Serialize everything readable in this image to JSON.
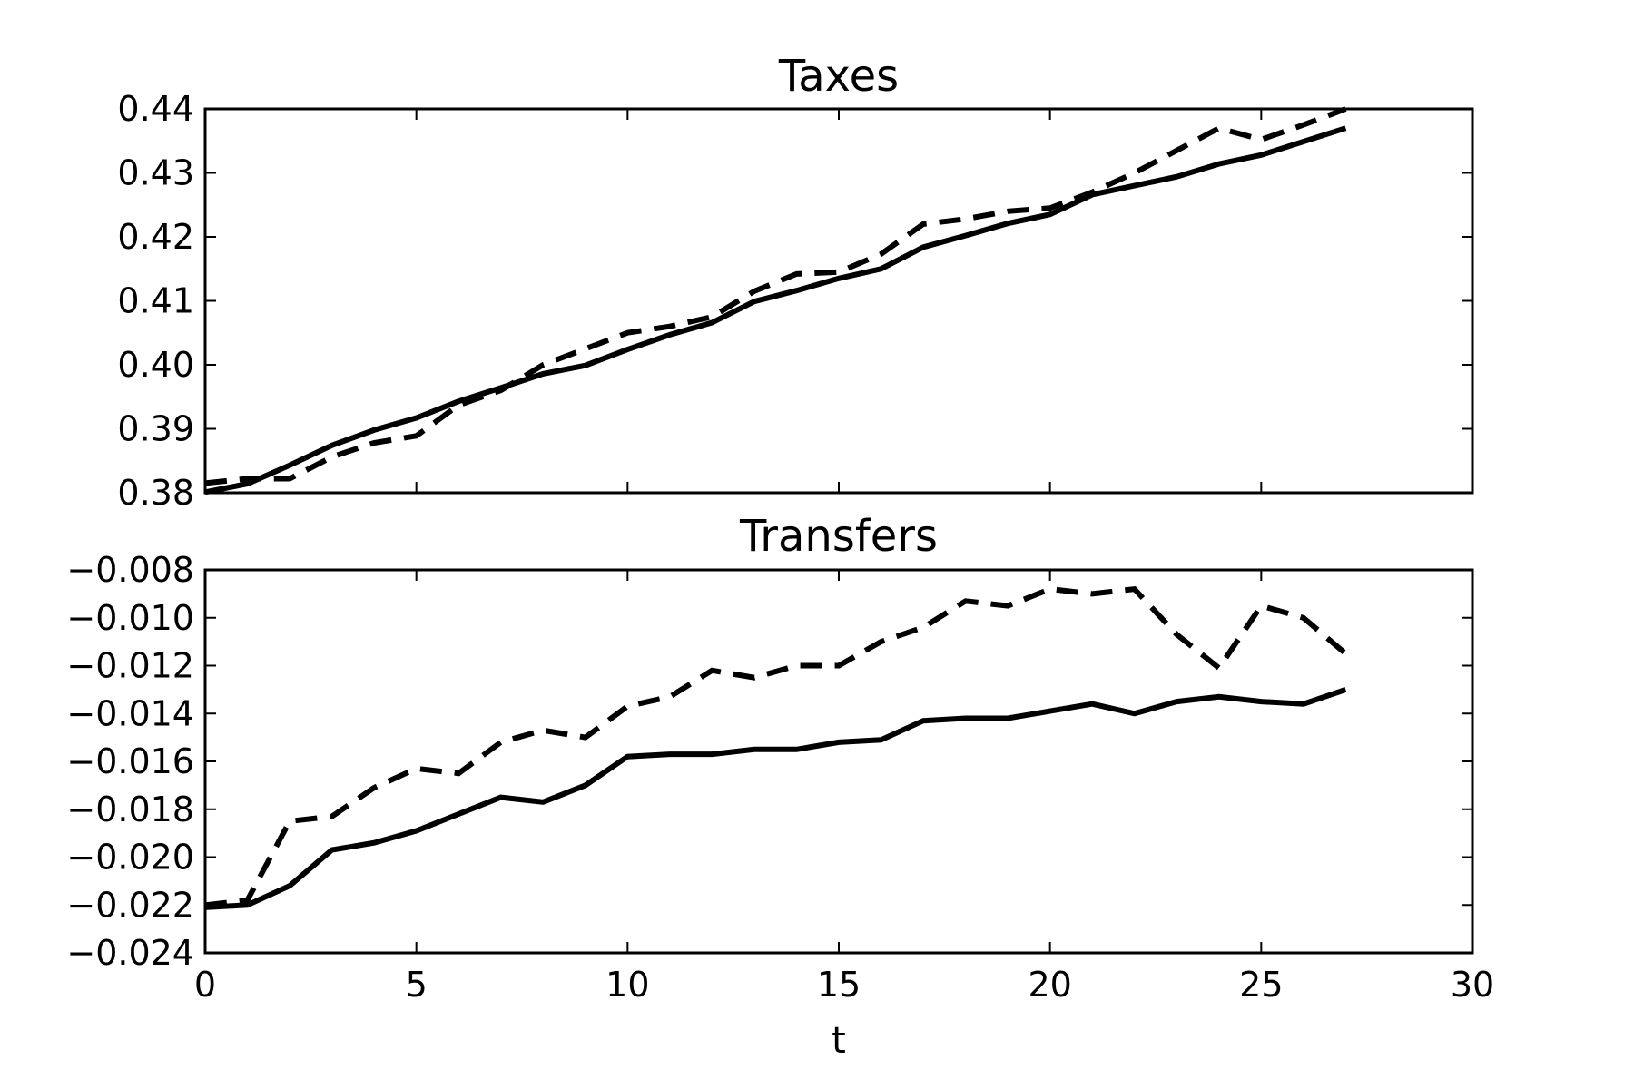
{
  "chart_data": [
    {
      "type": "line",
      "title": "Taxes",
      "xlabel": "",
      "ylabel": "",
      "xlim": [
        0,
        30
      ],
      "ylim": [
        0.38,
        0.44
      ],
      "xticks": [
        0,
        5,
        10,
        15,
        20,
        25,
        30
      ],
      "yticks": [
        "0.38",
        "0.39",
        "0.40",
        "0.41",
        "0.42",
        "0.43",
        "0.44"
      ],
      "show_xtick_labels": false,
      "grid": false,
      "x": [
        0,
        1,
        2,
        3,
        4,
        5,
        6,
        7,
        8,
        9,
        10,
        11,
        12,
        13,
        14,
        15,
        16,
        17,
        18,
        19,
        20,
        21,
        22,
        23,
        24,
        25,
        26,
        27
      ],
      "series": [
        {
          "style": "solid",
          "values": [
            0.3801,
            0.3814,
            0.3843,
            0.3874,
            0.3898,
            0.3917,
            0.3943,
            0.3964,
            0.3986,
            0.3999,
            0.4024,
            0.4047,
            0.4066,
            0.4099,
            0.4116,
            0.4135,
            0.415,
            0.4184,
            0.4202,
            0.4221,
            0.4235,
            0.4266,
            0.428,
            0.4294,
            0.4314,
            0.4328,
            0.4349,
            0.437
          ]
        },
        {
          "style": "dashed",
          "values": [
            0.3815,
            0.3822,
            0.3822,
            0.3856,
            0.3878,
            0.3889,
            0.3937,
            0.396,
            0.4,
            0.4025,
            0.405,
            0.406,
            0.4075,
            0.4115,
            0.4142,
            0.4145,
            0.4173,
            0.422,
            0.4228,
            0.424,
            0.4245,
            0.427,
            0.43,
            0.4335,
            0.437,
            0.4352,
            0.4375,
            0.44
          ]
        }
      ]
    },
    {
      "type": "line",
      "title": "Transfers",
      "xlabel": "t",
      "ylabel": "",
      "xlim": [
        0,
        30
      ],
      "ylim": [
        -0.024,
        -0.008
      ],
      "xticks": [
        0,
        5,
        10,
        15,
        20,
        25,
        30
      ],
      "xtick_labels": [
        "0",
        "5",
        "10",
        "15",
        "20",
        "25",
        "30"
      ],
      "yticks": [
        "−0.024",
        "−0.022",
        "−0.020",
        "−0.018",
        "−0.016",
        "−0.014",
        "−0.012",
        "−0.010",
        "−0.008"
      ],
      "show_xtick_labels": true,
      "grid": false,
      "x": [
        0,
        1,
        2,
        3,
        4,
        5,
        6,
        7,
        8,
        9,
        10,
        11,
        12,
        13,
        14,
        15,
        16,
        17,
        18,
        19,
        20,
        21,
        22,
        23,
        24,
        25,
        26,
        27
      ],
      "series": [
        {
          "style": "solid",
          "values": [
            -0.0221,
            -0.022,
            -0.0212,
            -0.0197,
            -0.0194,
            -0.0189,
            -0.0182,
            -0.0175,
            -0.0177,
            -0.017,
            -0.0158,
            -0.0157,
            -0.0157,
            -0.0155,
            -0.0155,
            -0.0152,
            -0.0151,
            -0.0143,
            -0.0142,
            -0.0142,
            -0.0139,
            -0.0136,
            -0.014,
            -0.0135,
            -0.0133,
            -0.0135,
            -0.0136,
            -0.013
          ]
        },
        {
          "style": "dashed",
          "values": [
            -0.022,
            -0.0218,
            -0.0185,
            -0.0183,
            -0.0171,
            -0.0163,
            -0.0165,
            -0.0152,
            -0.0147,
            -0.015,
            -0.0137,
            -0.0133,
            -0.0122,
            -0.0125,
            -0.012,
            -0.012,
            -0.011,
            -0.0104,
            -0.0093,
            -0.0095,
            -0.0088,
            -0.009,
            -0.0088,
            -0.0107,
            -0.0121,
            -0.0095,
            -0.01,
            -0.0115
          ]
        }
      ]
    }
  ]
}
